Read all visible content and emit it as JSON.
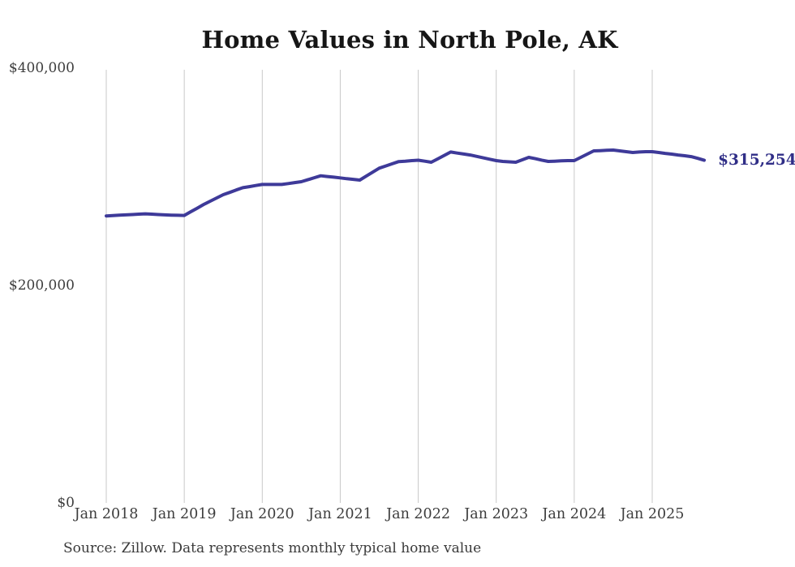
{
  "title": "Home Values in North Pole, AK",
  "end_label": {
    "text": "$315,254"
  },
  "source": "Source: Zillow. Data represents monthly typical home value",
  "y_axis": {
    "labels": [
      "$400,000",
      "$200,000",
      "$0"
    ],
    "values": [
      400000,
      200000,
      0
    ]
  },
  "x_axis": {
    "ticks": [
      "Jan 2018",
      "Jan 2019",
      "Jan 2020",
      "Jan 2021",
      "Jan 2022",
      "Jan 2023",
      "Jan 2024",
      "Jan 2025"
    ]
  },
  "colors": {
    "line": "#3e3a99",
    "end_label": "#302e87",
    "grid": "#c9c9c9",
    "title": "#161616",
    "axis_text": "#3d3d3d",
    "source_text": "#3a3a3a",
    "background": "#ffffff"
  },
  "chart_data": {
    "type": "line",
    "title": "Home Values in North Pole, AK",
    "xlabel": "",
    "ylabel": "",
    "ylim": [
      0,
      400000
    ],
    "grid": "vertical-only",
    "legend": "none",
    "series_name": "Typical home value (monthly)",
    "x": [
      "2018-01",
      "2018-02",
      "2018-03",
      "2018-04",
      "2018-05",
      "2018-06",
      "2018-07",
      "2018-08",
      "2018-09",
      "2018-10",
      "2018-11",
      "2018-12",
      "2019-01",
      "2019-02",
      "2019-03",
      "2019-04",
      "2019-05",
      "2019-06",
      "2019-07",
      "2019-08",
      "2019-09",
      "2019-10",
      "2019-11",
      "2019-12",
      "2020-01",
      "2020-02",
      "2020-03",
      "2020-04",
      "2020-05",
      "2020-06",
      "2020-07",
      "2020-08",
      "2020-09",
      "2020-10",
      "2020-11",
      "2020-12",
      "2021-01",
      "2021-02",
      "2021-03",
      "2021-04",
      "2021-05",
      "2021-06",
      "2021-07",
      "2021-08",
      "2021-09",
      "2021-10",
      "2021-11",
      "2021-12",
      "2022-01",
      "2022-02",
      "2022-03",
      "2022-04",
      "2022-05",
      "2022-06",
      "2022-07",
      "2022-08",
      "2022-09",
      "2022-10",
      "2022-11",
      "2022-12",
      "2023-01",
      "2023-02",
      "2023-03",
      "2023-04",
      "2023-05",
      "2023-06",
      "2023-07",
      "2023-08",
      "2023-09",
      "2023-10",
      "2023-11",
      "2023-12",
      "2024-01",
      "2024-02",
      "2024-03",
      "2024-04",
      "2024-05",
      "2024-06",
      "2024-07",
      "2024-08",
      "2024-09",
      "2024-10",
      "2024-11",
      "2024-12",
      "2025-01",
      "2025-02",
      "2025-03",
      "2025-04",
      "2025-05",
      "2025-06",
      "2025-07",
      "2025-08",
      "2025-09"
    ],
    "values": [
      264000,
      264300,
      264700,
      265000,
      265300,
      265700,
      266000,
      265700,
      265300,
      265000,
      264800,
      264600,
      264500,
      267900,
      271200,
      274600,
      277600,
      280600,
      283600,
      285700,
      287900,
      290000,
      291000,
      292000,
      293000,
      293000,
      293000,
      293000,
      293800,
      294700,
      295500,
      297300,
      299200,
      301000,
      300300,
      299700,
      299000,
      298300,
      297700,
      297000,
      300700,
      304300,
      308000,
      310000,
      312000,
      314000,
      314400,
      314900,
      315300,
      314400,
      313400,
      316500,
      319700,
      322800,
      321900,
      321000,
      320100,
      318800,
      317500,
      316200,
      314900,
      314200,
      313800,
      313400,
      315700,
      317900,
      316700,
      315400,
      314200,
      314400,
      314700,
      314900,
      314900,
      317900,
      320900,
      323900,
      324100,
      324400,
      324600,
      323900,
      323100,
      322400,
      322800,
      323100,
      323100,
      322400,
      321600,
      320900,
      320100,
      319400,
      318600,
      317000,
      315254
    ],
    "final_value": 315254
  }
}
